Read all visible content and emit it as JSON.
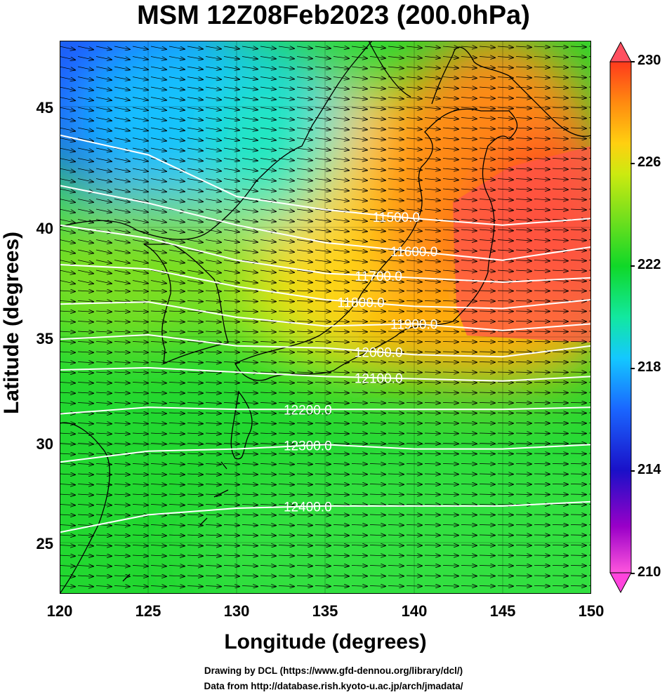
{
  "title": "MSM 12Z08Feb2023 (200.0hPa)",
  "x_axis": {
    "label": "Longitude (degrees)",
    "ticks": [
      "120",
      "125",
      "130",
      "135",
      "140",
      "145",
      "150"
    ],
    "range": [
      120,
      150
    ]
  },
  "y_axis": {
    "label": "Latitude  (degrees)",
    "ticks": [
      "25",
      "30",
      "35",
      "40",
      "45"
    ],
    "range": [
      22.4,
      47.6
    ]
  },
  "colorbar": {
    "ticks": [
      "210",
      "214",
      "218",
      "222",
      "226",
      "230"
    ],
    "range": [
      210,
      230
    ],
    "colors": [
      "#ff55dd",
      "#9a00c8",
      "#1a10c8",
      "#1a66ff",
      "#14c8ff",
      "#12e8a0",
      "#10d828",
      "#7ae01c",
      "#ccea10",
      "#ffd010",
      "#ff8a10",
      "#ff3a1c"
    ]
  },
  "contours": {
    "color": "#ffffff",
    "labels": [
      "11500.0",
      "11600.0",
      "11700.0",
      "11800.0",
      "11900.0",
      "12000.0",
      "12100.0",
      "12200.0",
      "12300.0",
      "12400.0"
    ]
  },
  "credits": [
    "Drawing by DCL (https://www.gfd-dennou.org/library/dcl/)",
    "Data from http://database.rish.kyoto-u.ac.jp/arch/jmadata/"
  ],
  "chart_data": {
    "type": "heatmap",
    "title": "MSM 12Z08Feb2023 (200.0hPa)",
    "xlabel": "Longitude (degrees)",
    "ylabel": "Latitude  (degrees)",
    "xlim": [
      120,
      150
    ],
    "ylim": [
      22.4,
      47.6
    ],
    "shading_range": [
      210,
      230
    ],
    "contour_lines": [
      {
        "label": "11500.0",
        "points": [
          [
            120,
            43.3
          ],
          [
            125,
            42.4
          ],
          [
            130,
            40.5
          ],
          [
            135,
            39.9
          ],
          [
            140,
            39.5
          ],
          [
            145,
            39.2
          ],
          [
            150,
            39.5
          ]
        ]
      },
      {
        "label": "11600.0",
        "points": [
          [
            120,
            41.0
          ],
          [
            125,
            40.2
          ],
          [
            130,
            39.2
          ],
          [
            135,
            38.4
          ],
          [
            140,
            38.0
          ],
          [
            145,
            37.6
          ],
          [
            150,
            38.2
          ]
        ]
      },
      {
        "label": "11700.0",
        "points": [
          [
            120,
            39.2
          ],
          [
            125,
            38.6
          ],
          [
            130,
            37.6
          ],
          [
            135,
            37.0
          ],
          [
            140,
            36.8
          ],
          [
            145,
            36.6
          ],
          [
            150,
            36.8
          ]
        ]
      },
      {
        "label": "11800.0",
        "points": [
          [
            120,
            37.4
          ],
          [
            125,
            37.2
          ],
          [
            130,
            36.4
          ],
          [
            135,
            35.8
          ],
          [
            140,
            35.5
          ],
          [
            145,
            35.4
          ],
          [
            150,
            35.8
          ]
        ]
      },
      {
        "label": "11900.0",
        "points": [
          [
            120,
            35.6
          ],
          [
            125,
            35.7
          ],
          [
            130,
            35.0
          ],
          [
            135,
            34.6
          ],
          [
            140,
            34.7
          ],
          [
            145,
            34.4
          ],
          [
            150,
            34.7
          ]
        ]
      },
      {
        "label": "12000.0",
        "points": [
          [
            120,
            34.0
          ],
          [
            125,
            34.2
          ],
          [
            130,
            33.7
          ],
          [
            135,
            33.6
          ],
          [
            140,
            33.3
          ],
          [
            145,
            33.2
          ],
          [
            150,
            33.7
          ]
        ]
      },
      {
        "label": "12100.0",
        "points": [
          [
            120,
            32.6
          ],
          [
            125,
            32.7
          ],
          [
            130,
            32.5
          ],
          [
            135,
            32.3
          ],
          [
            140,
            32.2
          ],
          [
            145,
            32.1
          ],
          [
            150,
            32.3
          ]
        ]
      },
      {
        "label": "12200.0",
        "points": [
          [
            120,
            30.6
          ],
          [
            125,
            30.9
          ],
          [
            130,
            30.8
          ],
          [
            135,
            30.8
          ],
          [
            140,
            30.8
          ],
          [
            145,
            30.8
          ],
          [
            150,
            30.9
          ]
        ]
      },
      {
        "label": "12300.0",
        "points": [
          [
            120,
            28.4
          ],
          [
            125,
            28.9
          ],
          [
            130,
            29.0
          ],
          [
            135,
            29.2
          ],
          [
            140,
            29.0
          ],
          [
            145,
            29.0
          ],
          [
            150,
            29.2
          ]
        ]
      },
      {
        "label": "12400.0",
        "points": [
          [
            120,
            25.2
          ],
          [
            125,
            26.0
          ],
          [
            130,
            26.3
          ],
          [
            135,
            26.4
          ],
          [
            140,
            26.4
          ],
          [
            145,
            26.4
          ],
          [
            150,
            26.6
          ]
        ]
      }
    ]
  }
}
